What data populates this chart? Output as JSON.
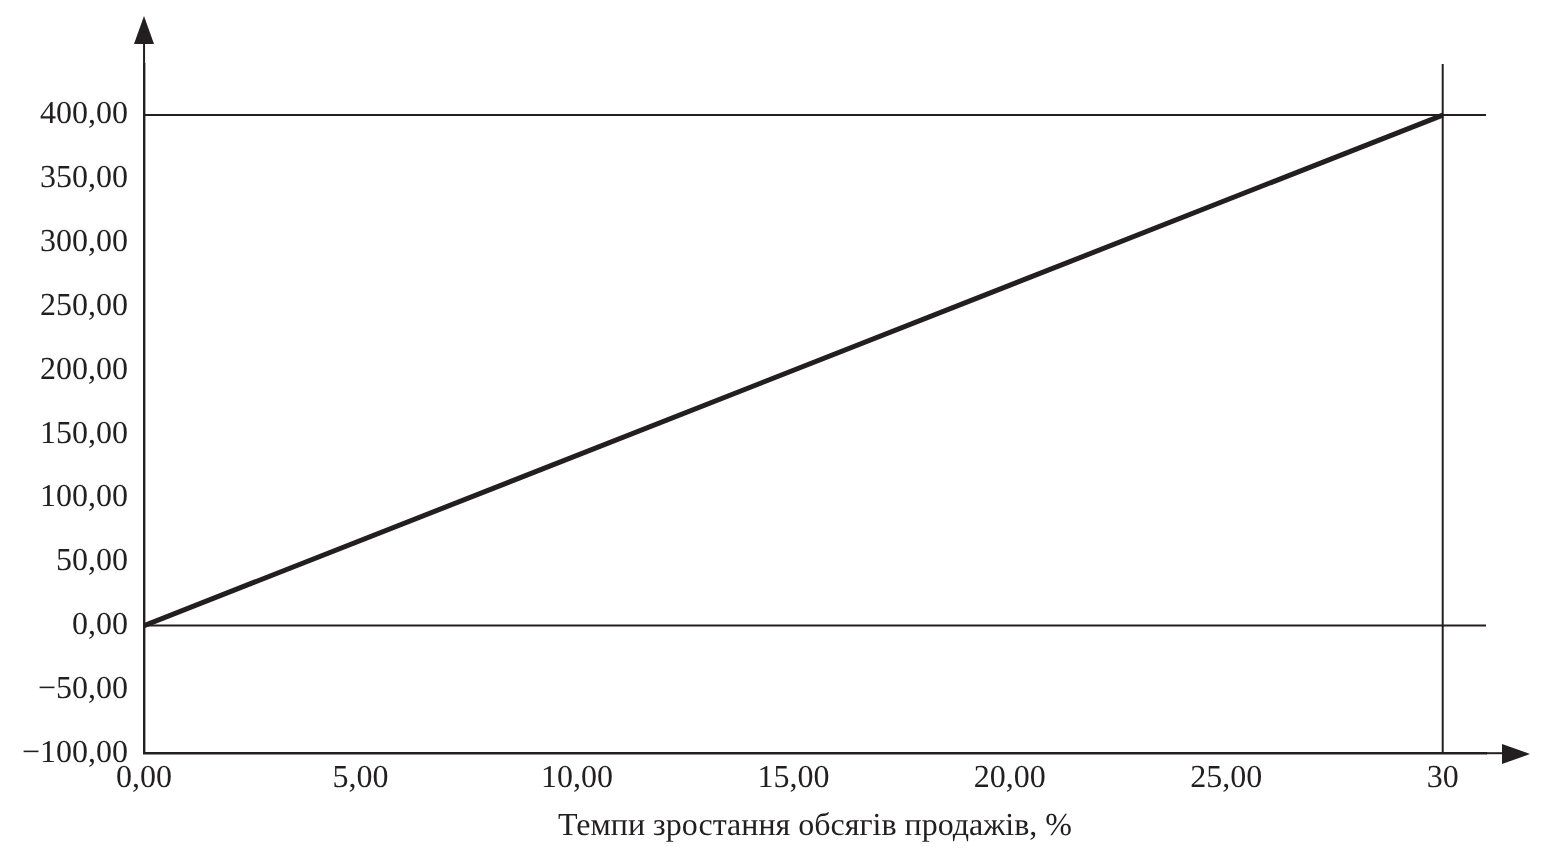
{
  "chart_data": {
    "type": "line",
    "xlabel": "Темпи зростання обсягів продажів, %",
    "x": [
      0,
      30
    ],
    "series": [
      {
        "color": "#231f20",
        "values": [
          0,
          400
        ]
      }
    ],
    "xlim": [
      0,
      31
    ],
    "ylim": [
      -100,
      440
    ],
    "xticks": [
      {
        "value": 0,
        "label": "0,00"
      },
      {
        "value": 5,
        "label": "5,00"
      },
      {
        "value": 10,
        "label": "10,00"
      },
      {
        "value": 15,
        "label": "15,00"
      },
      {
        "value": 20,
        "label": "20,00"
      },
      {
        "value": 25,
        "label": "25,00"
      },
      {
        "value": 30,
        "label": "30"
      }
    ],
    "yticks": [
      {
        "value": -100,
        "label": "−100,00"
      },
      {
        "value": -50,
        "label": "−50,00"
      },
      {
        "value": 0,
        "label": "0,00"
      },
      {
        "value": 50,
        "label": "50,00"
      },
      {
        "value": 100,
        "label": "100,00"
      },
      {
        "value": 150,
        "label": "150,00"
      },
      {
        "value": 200,
        "label": "200,00"
      },
      {
        "value": 250,
        "label": "250,00"
      },
      {
        "value": 300,
        "label": "300,00"
      },
      {
        "value": 350,
        "label": "350,00"
      },
      {
        "value": 400,
        "label": "400,00"
      }
    ],
    "ref_lines": [
      {
        "axis": "y",
        "value": 0
      },
      {
        "axis": "y",
        "value": 400
      },
      {
        "axis": "x",
        "value": 30
      }
    ],
    "grid": false,
    "legend": false,
    "marker": "none",
    "line_style": "solid"
  }
}
